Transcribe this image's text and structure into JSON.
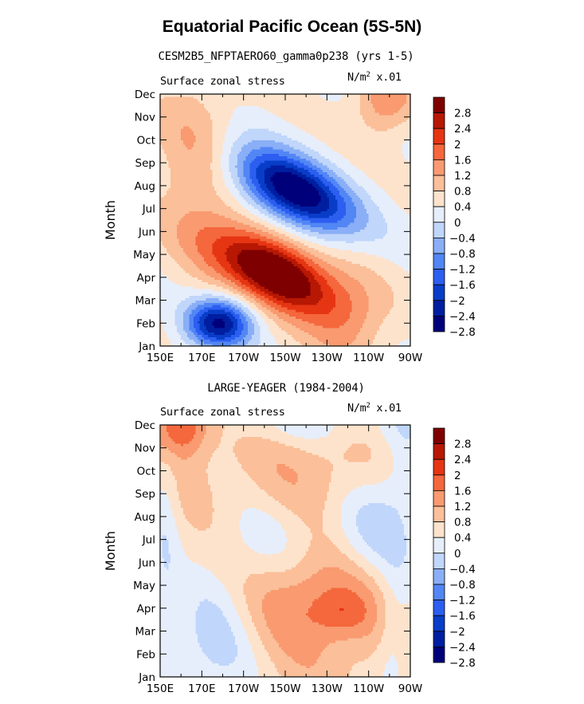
{
  "title": "Equatorial Pacific Ocean (5S-5N)",
  "chart_data": [
    {
      "type": "heatmap",
      "subtitle": "CESM2B5_NFPTAERO60_gamma0p238 (yrs 1-5)",
      "label_left": "Surface zonal stress",
      "units": {
        "base": "N/m",
        "exp": "2",
        "scale": " x.01"
      },
      "ylabel": "Month",
      "xlabel": "",
      "x_ticks": [
        "150E",
        "170E",
        "170W",
        "150W",
        "130W",
        "110W",
        "90W"
      ],
      "y_ticks": [
        "Jan",
        "Feb",
        "Mar",
        "Apr",
        "May",
        "Jun",
        "Jul",
        "Aug",
        "Sep",
        "Oct",
        "Nov",
        "Dec"
      ],
      "xlim": [
        150,
        270
      ],
      "colorbar_levels": [
        "2.8",
        "2.4",
        "2",
        "1.6",
        "1.2",
        "0.8",
        "0.4",
        "0",
        "-0.4",
        "-0.8",
        "-1.2",
        "-1.6",
        "-2",
        "-2.4",
        "-2.8"
      ],
      "features": [
        {
          "type": "max",
          "lon": 208,
          "month": 3.2,
          "value": 3.0
        },
        {
          "type": "max",
          "lon": 256,
          "month": 10.6,
          "value": 1.2
        },
        {
          "type": "min",
          "lon": 212,
          "month": 6.7,
          "value": -3.0
        },
        {
          "type": "min",
          "lon": 178,
          "month": 0.95,
          "value": -2.6
        }
      ]
    },
    {
      "type": "heatmap",
      "subtitle": "LARGE-YEAGER (1984-2004)",
      "label_left": "Surface zonal stress",
      "units": {
        "base": "N/m",
        "exp": "2",
        "scale": " x.01"
      },
      "ylabel": "Month",
      "xlabel": "",
      "x_ticks": [
        "150E",
        "170E",
        "170W",
        "150W",
        "130W",
        "110W",
        "90W"
      ],
      "y_ticks": [
        "Jan",
        "Feb",
        "Mar",
        "Apr",
        "May",
        "Jun",
        "Jul",
        "Aug",
        "Sep",
        "Oct",
        "Nov",
        "Dec"
      ],
      "xlim": [
        150,
        270
      ],
      "colorbar_levels": [
        "2.8",
        "2.4",
        "2",
        "1.6",
        "1.2",
        "0.8",
        "0.4",
        "0",
        "-0.4",
        "-0.8",
        "-1.2",
        "-1.6",
        "-2",
        "-2.4",
        "-2.8"
      ],
      "features": [
        {
          "type": "max",
          "lon": 230,
          "month": 3.1,
          "value": 1.3
        },
        {
          "type": "max",
          "lon": 160,
          "month": 11.0,
          "value": 1.5
        },
        {
          "type": "min",
          "lon": 175,
          "month": 1.2,
          "value": -1.0
        },
        {
          "type": "min",
          "lon": 250,
          "month": 6.3,
          "value": -0.9
        }
      ]
    }
  ],
  "colors": [
    "#00007a",
    "#001ea0",
    "#083dc8",
    "#2c5ef0",
    "#5286f5",
    "#8aaff7",
    "#c0d6fa",
    "#e6eefc",
    "#fde3cc",
    "#fbbf99",
    "#f99a70",
    "#f5673c",
    "#e63513",
    "#b71804",
    "#7f0000"
  ]
}
